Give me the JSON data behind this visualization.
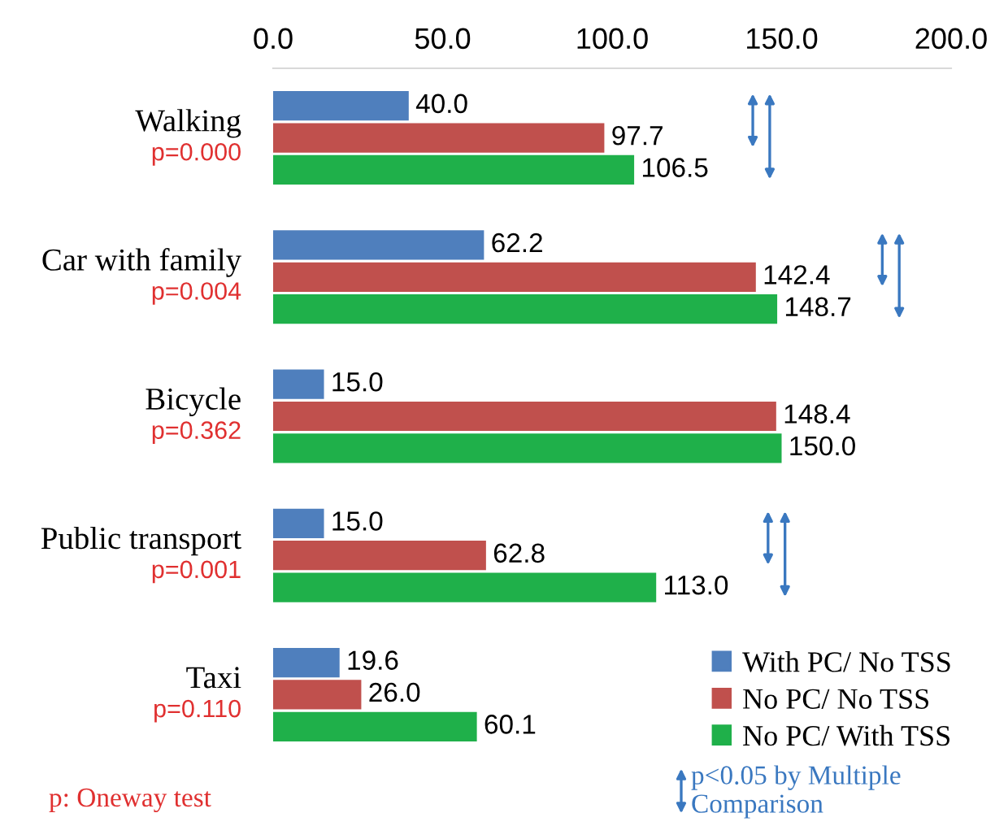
{
  "chart_data": {
    "type": "bar",
    "orientation": "horizontal",
    "categories": [
      "Walking",
      "Car with family",
      "Bicycle",
      "Public transport",
      "Taxi"
    ],
    "series": [
      {
        "name": "With PC/ No TSS",
        "color": "#4f7fbd",
        "values": [
          40.0,
          62.2,
          15.0,
          15.0,
          19.6
        ],
        "value_labels": [
          "40.0",
          "62.2",
          "15.0",
          "15.0",
          "19.6"
        ]
      },
      {
        "name": "No PC/ No TSS",
        "color": "#c0504d",
        "values": [
          97.7,
          142.4,
          148.4,
          62.8,
          26.0
        ],
        "value_labels": [
          "97.7",
          "142.4",
          "148.4",
          "62.8",
          "26.0"
        ]
      },
      {
        "name": "No PC/ With TSS",
        "color": "#1fb04a",
        "values": [
          106.5,
          148.7,
          150.0,
          113.0,
          60.1
        ],
        "value_labels": [
          "106.5",
          "148.7",
          "150.0",
          "113.0",
          "60.1"
        ]
      }
    ],
    "xlim": [
      0,
      200
    ],
    "xticks": [
      {
        "value": 0,
        "label": "0.0"
      },
      {
        "value": 50,
        "label": "50.0"
      },
      {
        "value": 100,
        "label": "100.0"
      },
      {
        "value": 150,
        "label": "150.0"
      },
      {
        "value": 200,
        "label": "200.0"
      }
    ],
    "annotations": [
      "p=0.000",
      "p=0.004",
      "p=0.362",
      "p=0.001",
      "p=0.110",
      "p: Oneway test",
      "p<0.05 by Multiple Comparison"
    ],
    "legend": "bottom right",
    "grid": false
  }
}
